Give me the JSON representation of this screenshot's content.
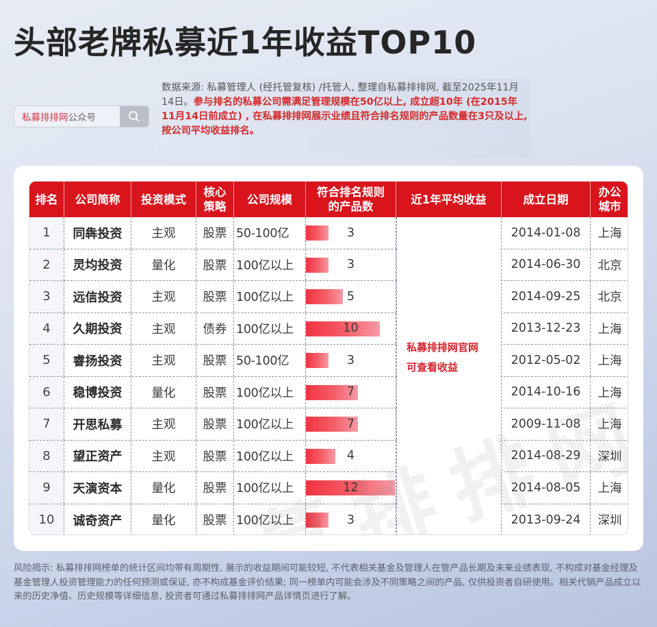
{
  "title": "头部老牌私募近1年收益TOP10",
  "search": {
    "brand": "私募排排网",
    "suffix": "公众号",
    "icon": "search-icon"
  },
  "source": {
    "normal": "数据来源: 私募管理人 (经托管复核) /托管人, 整理自私募排排网, 截至2025年11月14日。",
    "highlight": "参与排名的私募公司需满足管理规模在50亿以上, 成立超10年 (在2015年11月14日前成立) , 在私募排排网展示业绩且符合排名规则的产品数量在3只及以上, 按公司平均收益排名。"
  },
  "table": {
    "headers": [
      "排名",
      "公司简称",
      "投资模式",
      "核心策略",
      "公司规模",
      "符合排名规则的产品数",
      "近1年平均收益",
      "成立日期",
      "办公城市"
    ],
    "header_lines": {
      "strategy": [
        "核心",
        "策略"
      ],
      "count": [
        "符合排名规则",
        "的产品数"
      ],
      "city": [
        "办公",
        "城市"
      ]
    },
    "return_note": [
      "私募排排网官网",
      "可查看收益"
    ],
    "rows": [
      {
        "rank": "1",
        "name": "同犇投资",
        "mode": "主观",
        "strategy": "股票",
        "size": "50-100亿",
        "count": "3",
        "date": "2014-01-08",
        "city": "上海"
      },
      {
        "rank": "2",
        "name": "灵均投资",
        "mode": "量化",
        "strategy": "股票",
        "size": "100亿以上",
        "count": "3",
        "date": "2014-06-30",
        "city": "北京"
      },
      {
        "rank": "3",
        "name": "远信投资",
        "mode": "主观",
        "strategy": "股票",
        "size": "100亿以上",
        "count": "5",
        "date": "2014-09-25",
        "city": "北京"
      },
      {
        "rank": "4",
        "name": "久期投资",
        "mode": "主观",
        "strategy": "债券",
        "size": "100亿以上",
        "count": "10",
        "date": "2013-12-23",
        "city": "上海"
      },
      {
        "rank": "5",
        "name": "睿扬投资",
        "mode": "主观",
        "strategy": "股票",
        "size": "50-100亿",
        "count": "3",
        "date": "2012-05-02",
        "city": "上海"
      },
      {
        "rank": "6",
        "name": "稳博投资",
        "mode": "量化",
        "strategy": "股票",
        "size": "100亿以上",
        "count": "7",
        "date": "2014-10-16",
        "city": "上海"
      },
      {
        "rank": "7",
        "name": "开思私募",
        "mode": "主观",
        "strategy": "股票",
        "size": "100亿以上",
        "count": "7",
        "date": "2009-11-08",
        "city": "上海"
      },
      {
        "rank": "8",
        "name": "望正资产",
        "mode": "主观",
        "strategy": "股票",
        "size": "100亿以上",
        "count": "4",
        "date": "2014-08-29",
        "city": "深圳"
      },
      {
        "rank": "9",
        "name": "天演资本",
        "mode": "量化",
        "strategy": "股票",
        "size": "100亿以上",
        "count": "12",
        "date": "2014-08-05",
        "city": "上海"
      },
      {
        "rank": "10",
        "name": "诚奇资产",
        "mode": "量化",
        "strategy": "股票",
        "size": "100亿以上",
        "count": "3",
        "date": "2013-09-24",
        "city": "深圳"
      }
    ]
  },
  "watermark": "私募排排网",
  "risk": "风险揭示: 私募排排网榜单的统计区间均带有周期性, 展示的收益期间可能较短, 不代表相关基金及管理人在管产品长期及未来业绩表现, 不构成对基金经理及基金管理人投资管理能力的任何预测或保证, 亦不构成基金评价结果; 同一榜单内可能会涉及不同策略之间的产品, 仅供投资者自研使用。相关代销产品成立以来的历史净值、历史规模等详细信息, 投资者可通过私募排排网产品详情页进行了解。",
  "colors": {
    "header_red": "#d9141c",
    "bar_red": "#f2323e",
    "highlight_red": "#d42a2a"
  },
  "chart_data": {
    "type": "table",
    "title": "头部老牌私募近1年收益TOP10",
    "columns": [
      "排名",
      "公司简称",
      "投资模式",
      "核心策略",
      "公司规模",
      "符合排名规则的产品数",
      "近1年平均收益",
      "成立日期",
      "办公城市"
    ],
    "bar_column": "符合排名规则的产品数",
    "categories": [
      "同犇投资",
      "灵均投资",
      "远信投资",
      "久期投资",
      "睿扬投资",
      "稳博投资",
      "开思私募",
      "望正资产",
      "天演资本",
      "诚奇资产"
    ],
    "values": [
      3,
      3,
      5,
      10,
      3,
      7,
      7,
      4,
      12,
      3
    ],
    "xlim": [
      0,
      12
    ]
  }
}
